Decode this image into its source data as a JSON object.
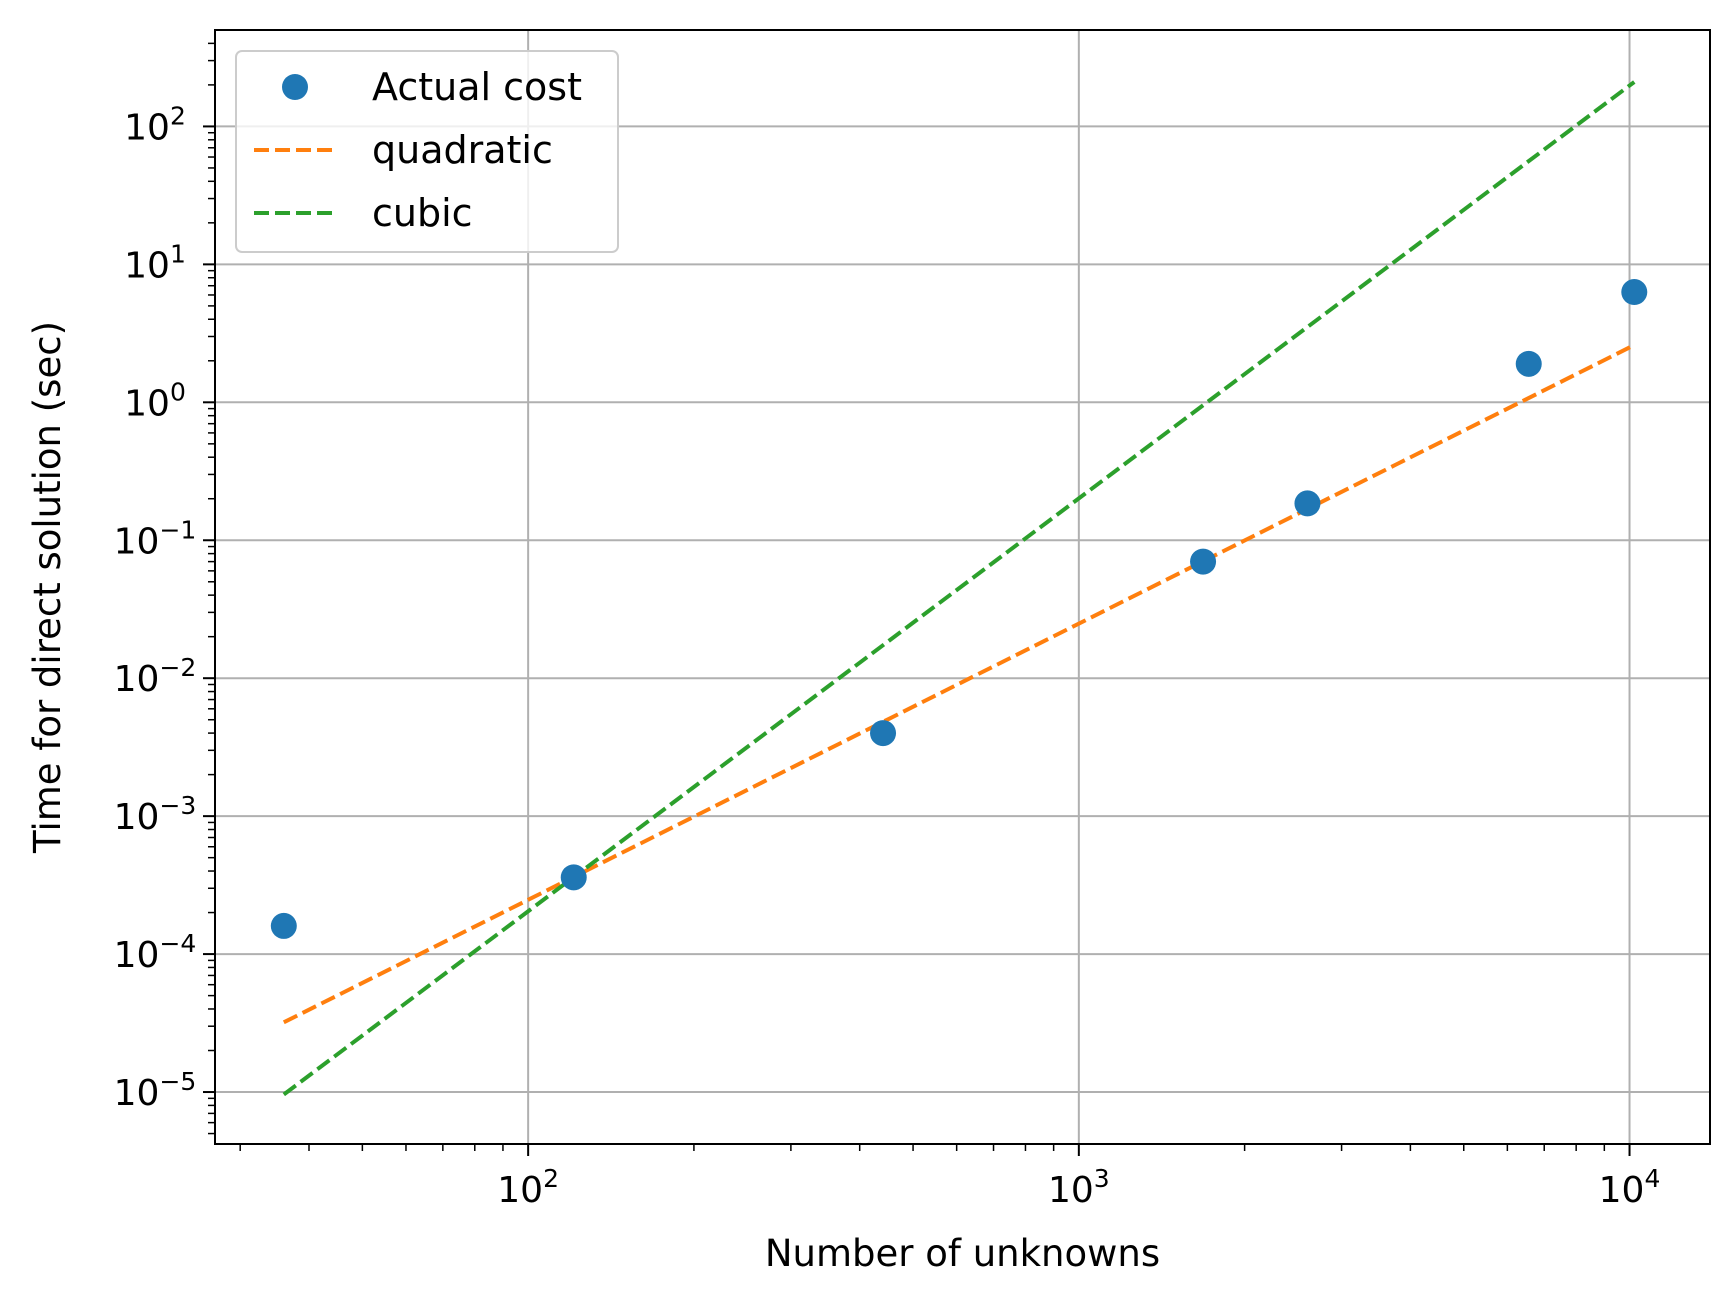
{
  "chart_data": {
    "type": "scatter",
    "xlabel": "Number of unknowns",
    "ylabel": "Time for direct solution (sec)",
    "xscale": "log",
    "yscale": "log",
    "xlim": [
      27,
      14000
    ],
    "ylim": [
      4.2e-06,
      500
    ],
    "grid": true,
    "legend_position": "top-left",
    "x_ticks": [
      {
        "value": 100,
        "base": "10",
        "exp": "2"
      },
      {
        "value": 1000,
        "base": "10",
        "exp": "3"
      },
      {
        "value": 10000,
        "base": "10",
        "exp": "4"
      }
    ],
    "y_ticks": [
      {
        "value": 1e-05,
        "base": "10",
        "exp": "−5"
      },
      {
        "value": 0.0001,
        "base": "10",
        "exp": "−4"
      },
      {
        "value": 0.001,
        "base": "10",
        "exp": "−3"
      },
      {
        "value": 0.01,
        "base": "10",
        "exp": "−2"
      },
      {
        "value": 0.1,
        "base": "10",
        "exp": "−1"
      },
      {
        "value": 1,
        "base": "10",
        "exp": "0"
      },
      {
        "value": 10,
        "base": "10",
        "exp": "1"
      },
      {
        "value": 100,
        "base": "10",
        "exp": "2"
      }
    ],
    "series": [
      {
        "name": "Actual cost",
        "kind": "markers",
        "color": "#1f77b4",
        "x": [
          36,
          121,
          441,
          1681,
          2601,
          6561,
          10201
        ],
        "y": [
          0.00016,
          0.00036,
          0.004,
          0.07,
          0.185,
          1.9,
          6.3
        ]
      },
      {
        "name": "quadratic",
        "kind": "dashed-line",
        "color": "#ff7f0e",
        "x": [
          36,
          10201
        ],
        "y": [
          3.2e-05,
          2.6
        ]
      },
      {
        "name": "cubic",
        "kind": "dashed-line",
        "color": "#2ca02c",
        "x": [
          36,
          10201
        ],
        "y": [
          9.6e-06,
          210
        ]
      }
    ]
  }
}
